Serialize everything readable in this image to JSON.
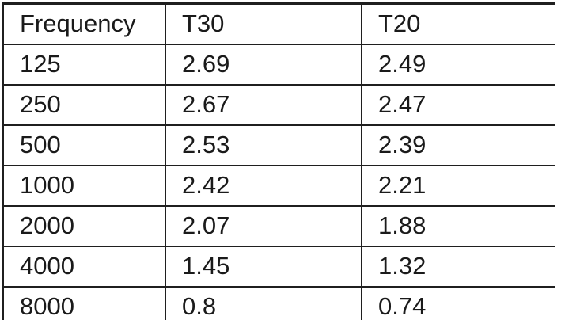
{
  "table": {
    "columns": [
      "Frequency",
      "T30",
      "T20"
    ],
    "rows": [
      [
        "125",
        "2.69",
        "2.49"
      ],
      [
        "250",
        "2.67",
        "2.47"
      ],
      [
        "500",
        "2.53",
        "2.39"
      ],
      [
        "1000",
        "2.42",
        "2.21"
      ],
      [
        "2000",
        "2.07",
        "1.88"
      ],
      [
        "4000",
        "1.45",
        "1.32"
      ],
      [
        "8000",
        "0.8",
        "0.74"
      ]
    ]
  },
  "chart_data": {
    "type": "table",
    "title": "",
    "categories": [
      125,
      250,
      500,
      1000,
      2000,
      4000,
      8000
    ],
    "series": [
      {
        "name": "T30",
        "values": [
          2.69,
          2.67,
          2.53,
          2.42,
          2.07,
          1.45,
          0.8
        ]
      },
      {
        "name": "T20",
        "values": [
          2.49,
          2.47,
          2.39,
          2.21,
          1.88,
          1.32,
          0.74
        ]
      }
    ],
    "xlabel": "Frequency",
    "ylabel": ""
  },
  "colors": {
    "border": "#1f1f1f",
    "text": "#1a1a1a",
    "background": "#ffffff"
  }
}
